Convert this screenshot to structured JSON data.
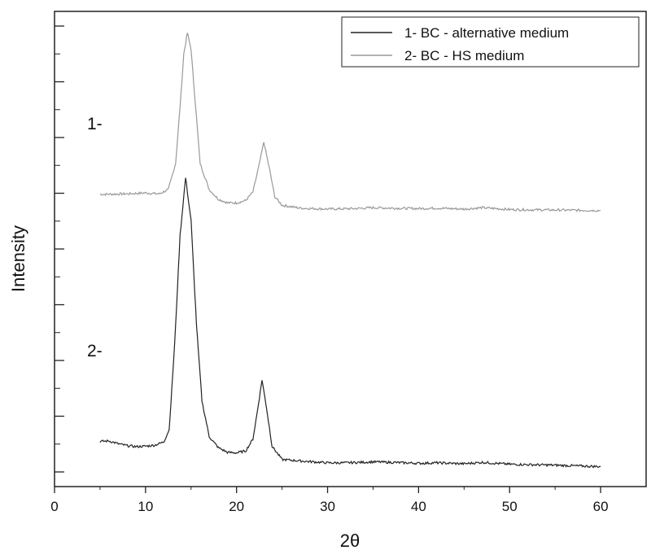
{
  "chart_data": {
    "type": "line",
    "xlabel": "2θ",
    "ylabel": "Intensity",
    "xlim": [
      0,
      65
    ],
    "ylim": [
      0,
      100
    ],
    "x_ticks": [
      0,
      10,
      20,
      30,
      40,
      50,
      60
    ],
    "x_tick_labels": [
      "0",
      "10",
      "20",
      "30",
      "40",
      "50",
      "60"
    ],
    "y_tick_labels_shown": false,
    "grid": false,
    "legend_position": "top-right",
    "legend_entries": [
      {
        "label": "1- BC - alternative medium",
        "color": "#222222"
      },
      {
        "label": "2- BC - HS medium",
        "color": "#999999"
      }
    ],
    "annotations": [
      "1-",
      "2-"
    ],
    "series": [
      {
        "name": "2- BC - HS medium",
        "color": "#999999",
        "points": [
          [
            5,
            61.5
          ],
          [
            8,
            61.6
          ],
          [
            10,
            61.8
          ],
          [
            11.5,
            61.6
          ],
          [
            12.5,
            62.5
          ],
          [
            13.3,
            68
          ],
          [
            13.8,
            80
          ],
          [
            14.2,
            91
          ],
          [
            14.6,
            95.5
          ],
          [
            15.0,
            92
          ],
          [
            15.5,
            80
          ],
          [
            16.0,
            68
          ],
          [
            17.0,
            62.5
          ],
          [
            18.0,
            60.5
          ],
          [
            19,
            59.7
          ],
          [
            20,
            59.7
          ],
          [
            21,
            60.2
          ],
          [
            21.8,
            62
          ],
          [
            22.4,
            67
          ],
          [
            23.0,
            72.5
          ],
          [
            23.6,
            67
          ],
          [
            24.2,
            61
          ],
          [
            25,
            59.2
          ],
          [
            27,
            58.6
          ],
          [
            30,
            58.4
          ],
          [
            33,
            58.5
          ],
          [
            35,
            58.7
          ],
          [
            37,
            58.6
          ],
          [
            40,
            58.5
          ],
          [
            42,
            58.6
          ],
          [
            45,
            58.4
          ],
          [
            47,
            58.7
          ],
          [
            50,
            58.3
          ],
          [
            55,
            58.2
          ],
          [
            60,
            58.1
          ]
        ]
      },
      {
        "name": "1- BC - alternative medium",
        "color": "#222222",
        "points": [
          [
            5,
            9.5
          ],
          [
            6,
            9.6
          ],
          [
            7,
            9.0
          ],
          [
            8,
            8.6
          ],
          [
            9,
            8.4
          ],
          [
            10,
            8.5
          ],
          [
            11,
            8.7
          ],
          [
            12,
            9.4
          ],
          [
            12.6,
            12
          ],
          [
            13.2,
            30
          ],
          [
            13.8,
            53
          ],
          [
            14.4,
            65
          ],
          [
            15.0,
            56
          ],
          [
            15.6,
            34
          ],
          [
            16.2,
            18
          ],
          [
            17,
            10.5
          ],
          [
            18,
            8.2
          ],
          [
            19,
            7.2
          ],
          [
            20,
            7.1
          ],
          [
            21,
            7.5
          ],
          [
            21.8,
            10
          ],
          [
            22.3,
            16
          ],
          [
            22.8,
            22.5
          ],
          [
            23.3,
            16.5
          ],
          [
            23.9,
            8.5
          ],
          [
            25,
            5.7
          ],
          [
            27,
            5.4
          ],
          [
            30,
            5.0
          ],
          [
            32,
            5.0
          ],
          [
            35,
            5.2
          ],
          [
            37,
            5.1
          ],
          [
            40,
            4.9
          ],
          [
            42,
            5.0
          ],
          [
            45,
            4.8
          ],
          [
            47,
            5.1
          ],
          [
            50,
            4.7
          ],
          [
            55,
            4.5
          ],
          [
            60,
            4.2
          ]
        ]
      }
    ]
  }
}
